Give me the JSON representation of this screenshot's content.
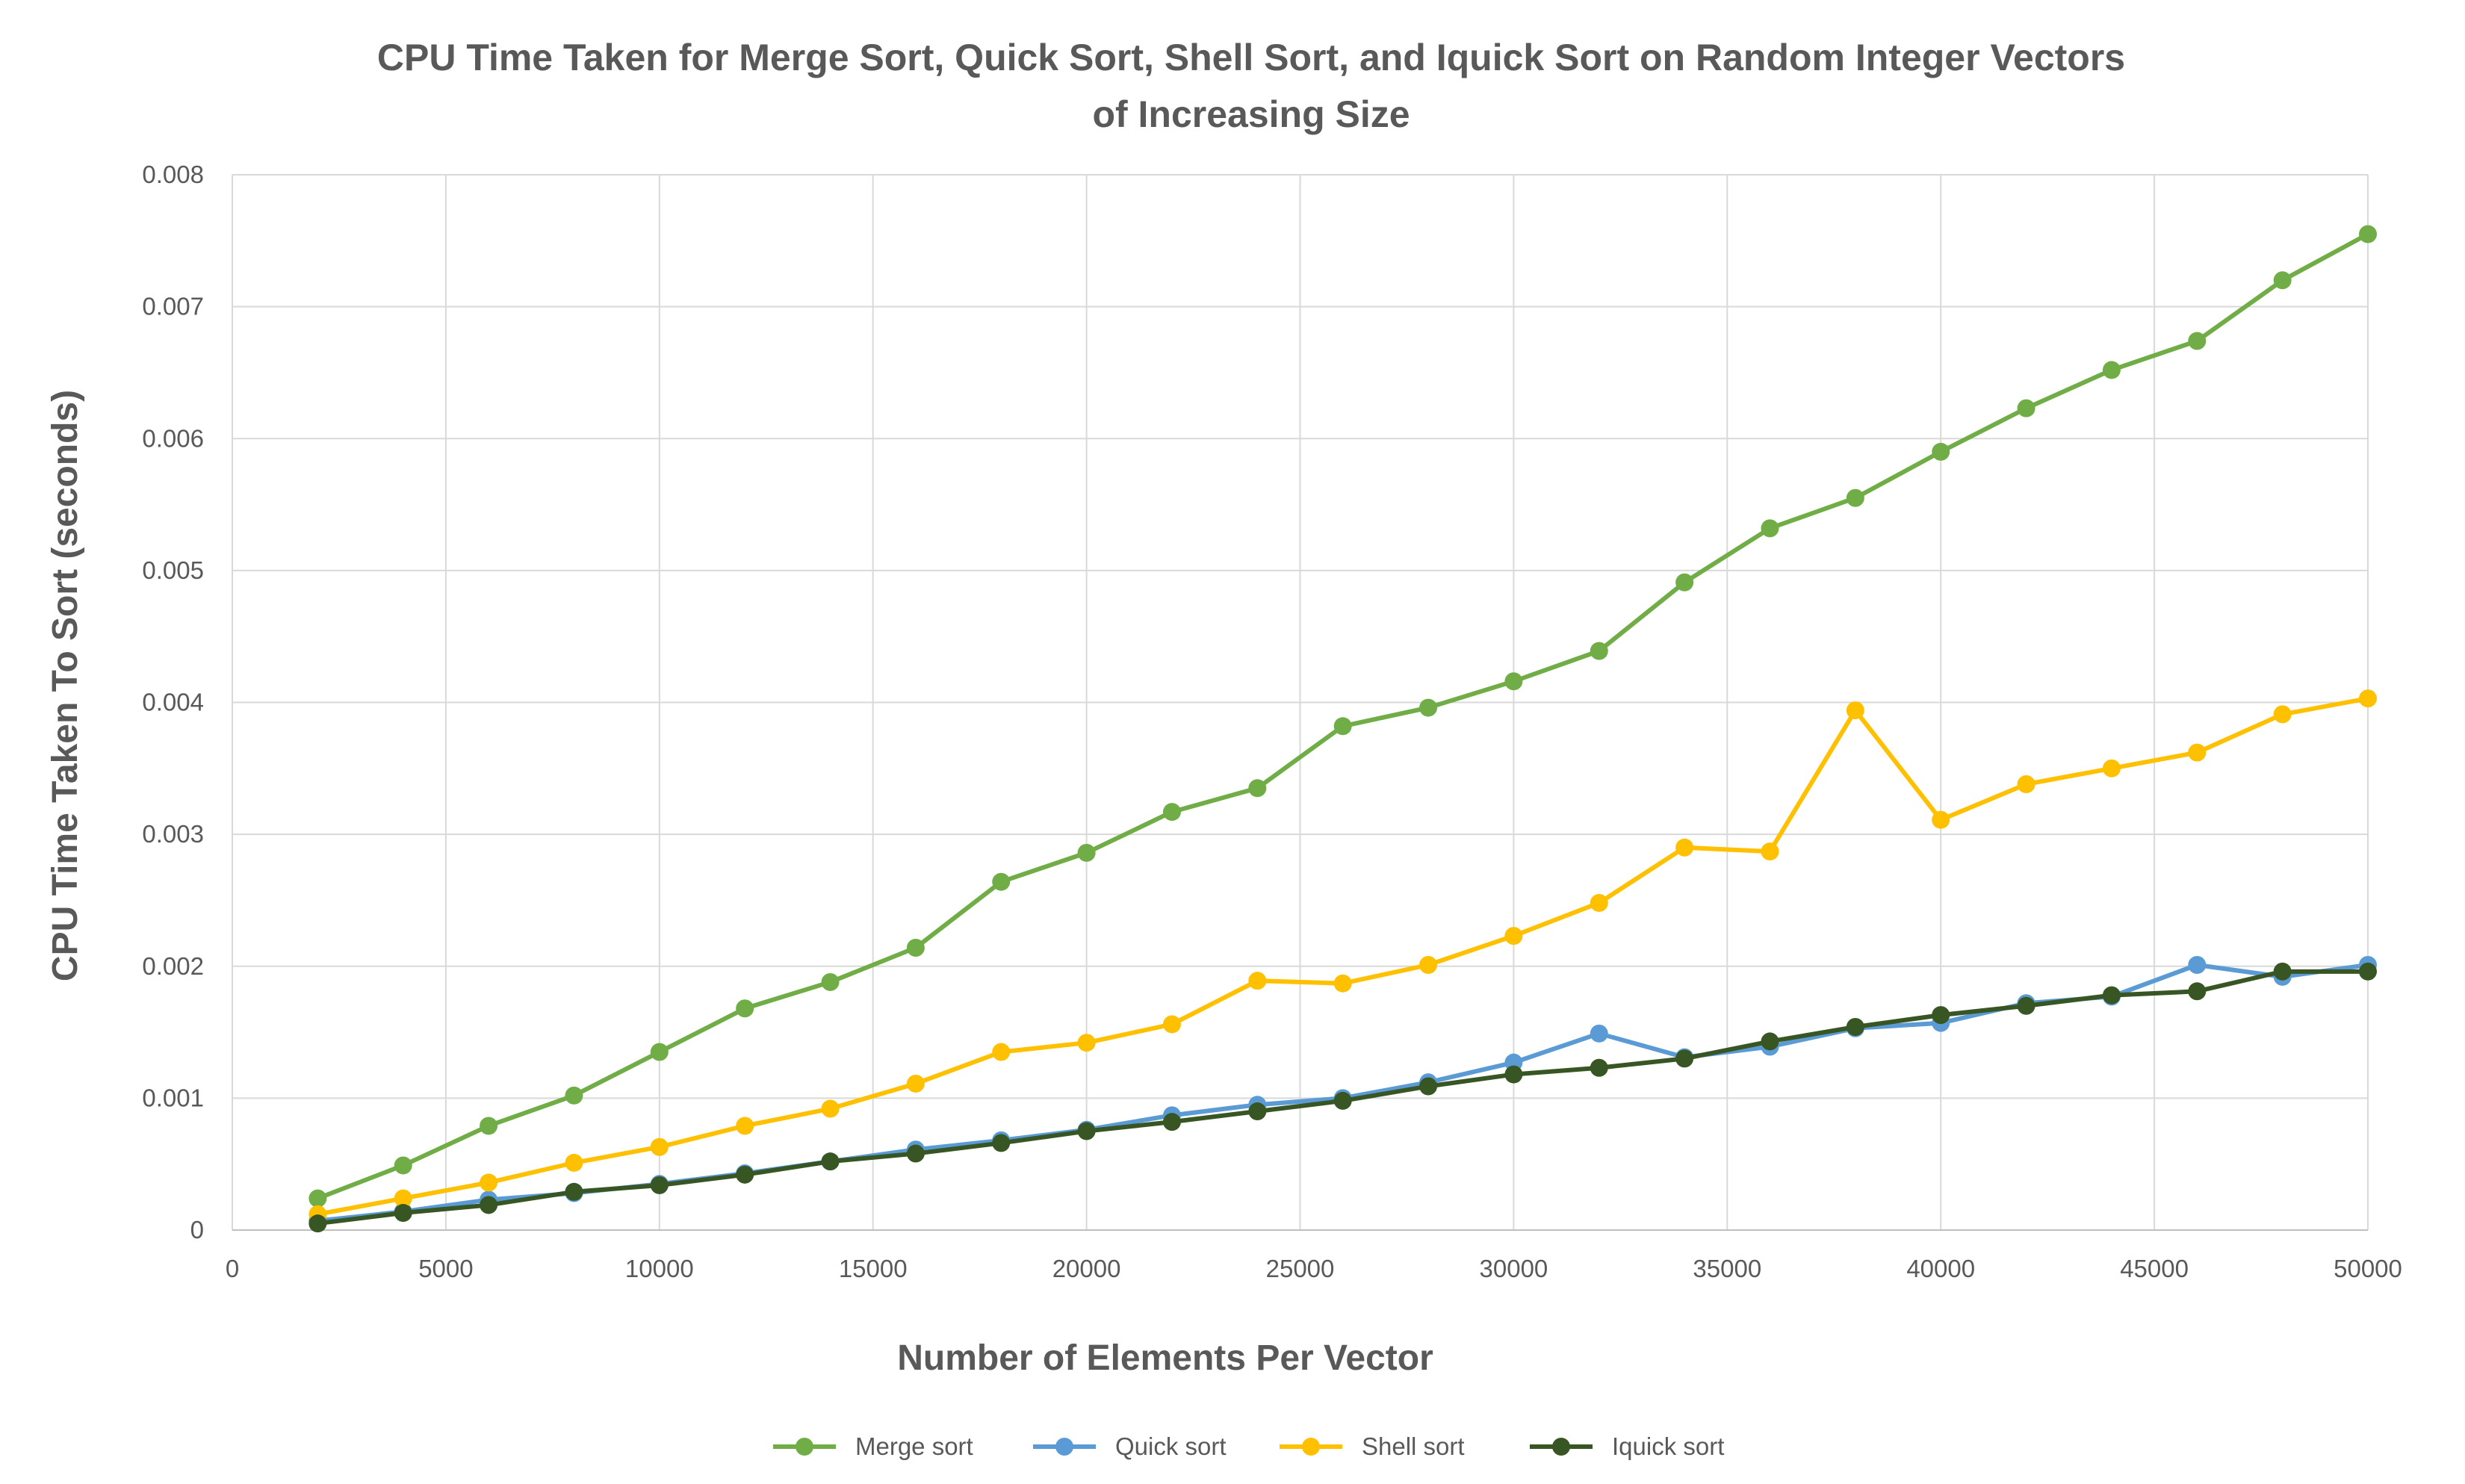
{
  "chart_data": {
    "type": "line",
    "title_line1": "CPU Time Taken for Merge Sort, Quick Sort, Shell Sort, and Iquick Sort on Random Integer Vectors",
    "title_line2": "of Increasing Size",
    "xlabel": "Number of Elements Per Vector",
    "ylabel": "CPU Time Taken To Sort  (seconds)",
    "xlim": [
      0,
      50000
    ],
    "ylim": [
      0,
      0.008
    ],
    "x_ticks": [
      "0",
      "5000",
      "10000",
      "15000",
      "20000",
      "25000",
      "30000",
      "35000",
      "40000",
      "45000",
      "50000"
    ],
    "y_ticks": [
      "0",
      "0.001",
      "0.002",
      "0.003",
      "0.004",
      "0.005",
      "0.006",
      "0.007",
      "0.008"
    ],
    "grid": true,
    "legend_position": "bottom",
    "x": [
      2000,
      4000,
      6000,
      8000,
      10000,
      12000,
      14000,
      16000,
      18000,
      20000,
      22000,
      24000,
      26000,
      28000,
      30000,
      32000,
      34000,
      36000,
      38000,
      40000,
      42000,
      44000,
      46000,
      48000,
      50000
    ],
    "series": [
      {
        "name": "Merge sort",
        "color": "#70ad47",
        "values": [
          0.00024,
          0.00049,
          0.00079,
          0.00102,
          0.00135,
          0.00168,
          0.00188,
          0.00214,
          0.00264,
          0.00286,
          0.00317,
          0.00335,
          0.00382,
          0.00396,
          0.00416,
          0.00439,
          0.00491,
          0.00532,
          0.00555,
          0.0059,
          0.00623,
          0.00652,
          0.00674,
          0.0072,
          0.00755
        ]
      },
      {
        "name": "Quick sort",
        "color": "#5b9bd5",
        "values": [
          7e-05,
          0.00014,
          0.00023,
          0.00028,
          0.00035,
          0.00043,
          0.00052,
          0.00061,
          0.00068,
          0.00076,
          0.00087,
          0.00095,
          0.001,
          0.00112,
          0.00127,
          0.00149,
          0.00131,
          0.00139,
          0.00153,
          0.00157,
          0.00172,
          0.00177,
          0.00201,
          0.00192,
          0.00201
        ]
      },
      {
        "name": "Shell sort",
        "color": "#ffc000",
        "values": [
          0.00012,
          0.00024,
          0.00036,
          0.00051,
          0.00063,
          0.00079,
          0.00092,
          0.00111,
          0.00135,
          0.00142,
          0.00156,
          0.00189,
          0.00187,
          0.00201,
          0.00223,
          0.00248,
          0.0029,
          0.00287,
          0.00394,
          0.00311,
          0.00338,
          0.0035,
          0.00362,
          0.00391,
          0.00403
        ]
      },
      {
        "name": "Iquick sort",
        "color": "#375623",
        "values": [
          5e-05,
          0.00013,
          0.00019,
          0.00029,
          0.00034,
          0.00042,
          0.00052,
          0.00058,
          0.00066,
          0.00075,
          0.00082,
          0.0009,
          0.00098,
          0.00109,
          0.00118,
          0.00123,
          0.0013,
          0.00143,
          0.00154,
          0.00163,
          0.0017,
          0.00178,
          0.00181,
          0.00196,
          0.00196
        ]
      }
    ]
  }
}
